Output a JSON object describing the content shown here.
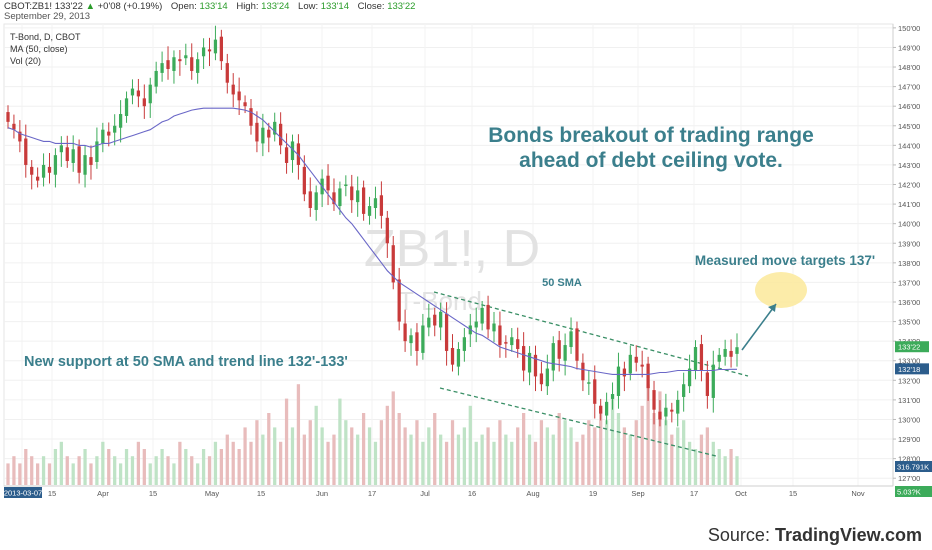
{
  "header": {
    "symbol": "CBOT:ZB1!",
    "last": "133'22",
    "change": "+0'08 (+0.19%)",
    "open_label": "Open:",
    "open": "133'14",
    "high_label": "High:",
    "high": "133'24",
    "low_label": "Low:",
    "low": "133'14",
    "close_label": "Close:",
    "close": "133'22",
    "date": "September 29, 2013"
  },
  "legend": {
    "line1": "T-Bond, D, CBOT",
    "line2": "MA (50, close)",
    "line3": "Vol (20)"
  },
  "watermark": {
    "symbol": "ZB1!, D",
    "name": "T-Bond"
  },
  "annotations": {
    "headline1": "Bonds breakout of trading range",
    "headline2": "ahead of debt ceiling vote.",
    "measured": "Measured move targets 137'",
    "sma": "50 SMA",
    "support": "New support at 50 SMA and trend line 132'-133'"
  },
  "colors": {
    "up": "#3cab5a",
    "down": "#c83a3a",
    "ma": "#6a67c7",
    "annotation": "#3b7f8c",
    "target_fill": "#fbe99a"
  },
  "source": {
    "prefix": "Source: ",
    "brand": "TradingView.com"
  },
  "chart_data": {
    "type": "candlestick",
    "y_axis_labels": [
      "150'00",
      "149'00",
      "148'00",
      "147'00",
      "146'00",
      "145'00",
      "144'00",
      "143'00",
      "142'00",
      "141'00",
      "140'00",
      "139'00",
      "138'00",
      "137'00",
      "136'00",
      "135'00",
      "134'00",
      "133'00",
      "132'00",
      "131'00",
      "130'00",
      "129'00",
      "128'00",
      "127'00"
    ],
    "ylim": [
      126.5,
      150.3
    ],
    "x_axis_labels": [
      "2013-03-07",
      "15",
      "Apr",
      "15",
      "May",
      "15",
      "Jun",
      "17",
      "Jul",
      "16",
      "Aug",
      "19",
      "Sep",
      "17",
      "Oct",
      "15",
      "Nov"
    ],
    "price_badges": [
      {
        "text": "133'22",
        "value": 133.69,
        "color": "#3cab5a"
      },
      {
        "text": "132'18",
        "value": 132.56,
        "color": "#2c5d8c"
      }
    ],
    "volume_badges": [
      {
        "text": "316.791K",
        "color": "#2c5d8c"
      },
      {
        "text": "5.03?K",
        "color": "#3cab5a"
      }
    ],
    "close": [
      145.2,
      144.8,
      144.2,
      143.0,
      142.5,
      142.2,
      143.0,
      142.6,
      143.5,
      144.0,
      143.2,
      143.8,
      142.6,
      143.5,
      143.0,
      144.2,
      144.8,
      144.5,
      145.0,
      145.6,
      146.4,
      146.9,
      146.5,
      146.0,
      147.1,
      147.8,
      148.2,
      147.9,
      148.5,
      148.3,
      148.6,
      147.8,
      148.4,
      149.0,
      148.8,
      149.4,
      148.3,
      147.2,
      146.6,
      146.3,
      146.0,
      145.0,
      144.2,
      144.9,
      144.4,
      145.2,
      144.0,
      143.1,
      144.2,
      143.0,
      141.5,
      140.8,
      141.6,
      142.3,
      141.7,
      141.0,
      141.8,
      142.0,
      141.2,
      141.7,
      140.5,
      140.9,
      141.3,
      140.4,
      139.0,
      137.0,
      135.0,
      134.0,
      134.3,
      133.5,
      134.8,
      135.2,
      134.8,
      135.5,
      133.5,
      132.8,
      133.6,
      134.2,
      134.8,
      135.0,
      135.7,
      134.6,
      134.9,
      133.8,
      133.9,
      134.2,
      133.6,
      132.5,
      133.4,
      132.2,
      131.8,
      132.6,
      133.9,
      133.1,
      133.8,
      134.5,
      133.0,
      132.0,
      131.9,
      130.8,
      130.3,
      130.9,
      131.3,
      132.7,
      132.2,
      133.3,
      132.9,
      132.7,
      131.6,
      130.5,
      130.0,
      130.6,
      130.4,
      131.0,
      131.8,
      132.6,
      133.7,
      132.5,
      131.2,
      132.8,
      133.3,
      133.6,
      133.2,
      133.69
    ],
    "ma50": [
      144.9,
      144.8,
      144.6,
      144.5,
      144.4,
      144.3,
      144.2,
      144.2,
      144.1,
      144.1,
      144.1,
      144.1,
      144.0,
      144.0,
      143.9,
      144.0,
      144.1,
      144.1,
      144.2,
      144.3,
      144.4,
      144.5,
      144.6,
      144.7,
      144.8,
      145.0,
      145.2,
      145.3,
      145.5,
      145.6,
      145.7,
      145.8,
      145.85,
      145.9,
      145.9,
      145.9,
      145.9,
      145.9,
      145.9,
      145.85,
      145.8,
      145.7,
      145.5,
      145.3,
      145.0,
      144.7,
      144.4,
      144.1,
      143.8,
      143.5,
      143.1,
      142.7,
      142.3,
      141.9,
      141.5,
      141.1,
      140.7,
      140.3,
      140.0,
      139.6,
      139.2,
      138.8,
      138.4,
      138.0,
      137.6,
      137.3,
      137.0,
      136.8,
      136.6,
      136.4,
      136.2,
      136.0,
      135.8,
      135.6,
      135.4,
      135.2,
      135.0,
      134.8,
      134.6,
      134.4,
      134.3,
      134.1,
      133.9,
      133.7,
      133.6,
      133.5,
      133.4,
      133.3,
      133.2,
      133.1,
      133.0,
      132.9,
      132.85,
      132.8,
      132.75,
      132.7,
      132.6,
      132.55,
      132.5,
      132.45,
      132.4,
      132.35,
      132.3,
      132.3,
      132.3,
      132.3,
      132.3,
      132.3,
      132.3,
      132.35,
      132.4,
      132.4,
      132.45,
      132.5,
      132.5,
      132.5,
      132.5,
      132.5,
      132.5,
      132.5,
      132.55,
      132.55,
      132.56,
      132.56
    ],
    "volume": [
      3,
      4,
      3,
      5,
      4,
      3,
      4,
      3,
      5,
      6,
      4,
      3,
      4,
      5,
      3,
      4,
      6,
      5,
      4,
      3,
      5,
      4,
      6,
      5,
      3,
      4,
      5,
      4,
      3,
      6,
      5,
      4,
      3,
      5,
      4,
      6,
      5,
      7,
      6,
      5,
      8,
      6,
      9,
      7,
      10,
      8,
      6,
      12,
      8,
      14,
      7,
      9,
      11,
      8,
      6,
      7,
      12,
      9,
      8,
      7,
      10,
      8,
      6,
      9,
      11,
      13,
      10,
      8,
      7,
      9,
      6,
      8,
      10,
      7,
      6,
      9,
      7,
      8,
      11,
      6,
      7,
      8,
      6,
      9,
      7,
      6,
      8,
      10,
      7,
      6,
      9,
      8,
      7,
      10,
      9,
      8,
      6,
      7,
      9,
      8,
      11,
      9,
      12,
      10,
      8,
      7,
      9,
      11,
      14,
      10,
      13,
      9,
      7,
      8,
      9,
      6,
      5,
      7,
      8,
      6,
      5,
      4,
      5,
      4
    ]
  }
}
